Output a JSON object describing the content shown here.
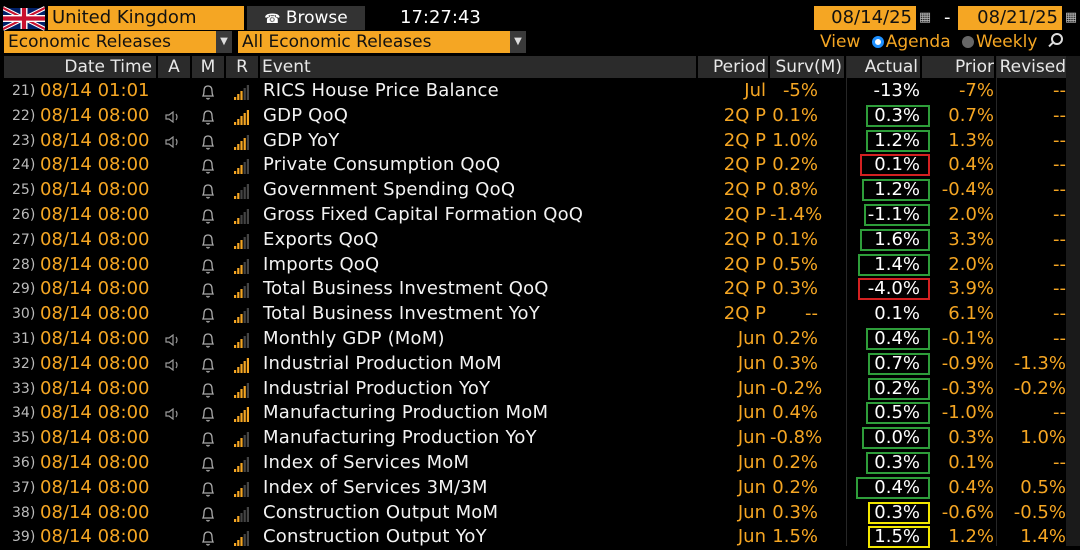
{
  "header": {
    "country": "United Kingdom",
    "browse_label": "Browse",
    "clock": "17:27:43",
    "date_from": "08/14/25",
    "date_to": "08/21/25",
    "date_sep": "-"
  },
  "filters": {
    "category": "Economic Releases",
    "subcategory": "All Economic Releases",
    "view_label": "View",
    "agenda_label": "Agenda",
    "weekly_label": "Weekly"
  },
  "columns": {
    "date_time": "Date Time",
    "a": "A",
    "m": "M",
    "r": "R",
    "event": "Event",
    "period": "Period",
    "surv": "Surv(M)",
    "actual": "Actual",
    "prior": "Prior",
    "revised": "Revised"
  },
  "colors": {
    "accent": "#f5a623",
    "beat": "#2e9d3a",
    "miss": "#d42121",
    "inline": "#f2e600"
  },
  "rows": [
    {
      "num": "21)",
      "dt": "08/14 01:01",
      "sound": false,
      "rel": 3,
      "event": "RICS House Price Balance",
      "period": "Jul",
      "surv": "-5%",
      "actual": "-13%",
      "prior": "-7%",
      "revised": "--",
      "box": "none",
      "bw": 0
    },
    {
      "num": "22)",
      "dt": "08/14 08:00",
      "sound": true,
      "rel": 5,
      "event": "GDP QoQ",
      "period": "2Q P",
      "surv": "0.1%",
      "actual": "0.3%",
      "prior": "0.7%",
      "revised": "--",
      "box": "green",
      "bw": 56
    },
    {
      "num": "23)",
      "dt": "08/14 08:00",
      "sound": true,
      "rel": 4,
      "event": "GDP YoY",
      "period": "2Q P",
      "surv": "1.0%",
      "actual": "1.2%",
      "prior": "1.3%",
      "revised": "--",
      "box": "green",
      "bw": 56
    },
    {
      "num": "24)",
      "dt": "08/14 08:00",
      "sound": false,
      "rel": 3,
      "event": "Private Consumption QoQ",
      "period": "2Q P",
      "surv": "0.2%",
      "actual": "0.1%",
      "prior": "0.4%",
      "revised": "--",
      "box": "red",
      "bw": 62
    },
    {
      "num": "25)",
      "dt": "08/14 08:00",
      "sound": false,
      "rel": 2,
      "event": "Government Spending QoQ",
      "period": "2Q P",
      "surv": "0.8%",
      "actual": "1.2%",
      "prior": "-0.4%",
      "revised": "--",
      "box": "green",
      "bw": 60
    },
    {
      "num": "26)",
      "dt": "08/14 08:00",
      "sound": false,
      "rel": 2,
      "event": "Gross Fixed Capital Formation QoQ",
      "period": "2Q P",
      "surv": "-1.4%",
      "actual": "-1.1%",
      "prior": "2.0%",
      "revised": "--",
      "box": "green",
      "bw": 58
    },
    {
      "num": "27)",
      "dt": "08/14 08:00",
      "sound": false,
      "rel": 3,
      "event": "Exports QoQ",
      "period": "2Q P",
      "surv": "0.1%",
      "actual": "1.6%",
      "prior": "3.3%",
      "revised": "--",
      "box": "green",
      "bw": 62
    },
    {
      "num": "28)",
      "dt": "08/14 08:00",
      "sound": false,
      "rel": 3,
      "event": "Imports QoQ",
      "period": "2Q P",
      "surv": "0.5%",
      "actual": "1.4%",
      "prior": "2.0%",
      "revised": "--",
      "box": "green",
      "bw": 64
    },
    {
      "num": "29)",
      "dt": "08/14 08:00",
      "sound": false,
      "rel": 3,
      "event": "Total Business Investment QoQ",
      "period": "2Q P",
      "surv": "0.3%",
      "actual": "-4.0%",
      "prior": "3.9%",
      "revised": "--",
      "box": "red",
      "bw": 64
    },
    {
      "num": "30)",
      "dt": "08/14 08:00",
      "sound": false,
      "rel": 3,
      "event": "Total Business Investment YoY",
      "period": "2Q P",
      "surv": "--",
      "actual": "0.1%",
      "prior": "6.1%",
      "revised": "--",
      "box": "none",
      "bw": 0
    },
    {
      "num": "31)",
      "dt": "08/14 08:00",
      "sound": true,
      "rel": 3,
      "event": "Monthly GDP (MoM)",
      "period": "Jun",
      "surv": "0.2%",
      "actual": "0.4%",
      "prior": "-0.1%",
      "revised": "--",
      "box": "green",
      "bw": 56
    },
    {
      "num": "32)",
      "dt": "08/14 08:00",
      "sound": true,
      "rel": 5,
      "event": "Industrial Production MoM",
      "period": "Jun",
      "surv": "0.3%",
      "actual": "0.7%",
      "prior": "-0.9%",
      "revised": "-1.3%",
      "box": "green",
      "bw": 54
    },
    {
      "num": "33)",
      "dt": "08/14 08:00",
      "sound": false,
      "rel": 4,
      "event": "Industrial Production YoY",
      "period": "Jun",
      "surv": "-0.2%",
      "actual": "0.2%",
      "prior": "-0.3%",
      "revised": "-0.2%",
      "box": "green",
      "bw": 54
    },
    {
      "num": "34)",
      "dt": "08/14 08:00",
      "sound": true,
      "rel": 5,
      "event": "Manufacturing Production MoM",
      "period": "Jun",
      "surv": "0.4%",
      "actual": "0.5%",
      "prior": "-1.0%",
      "revised": "--",
      "box": "green",
      "bw": 56
    },
    {
      "num": "35)",
      "dt": "08/14 08:00",
      "sound": false,
      "rel": 3,
      "event": "Manufacturing Production YoY",
      "period": "Jun",
      "surv": "-0.8%",
      "actual": "0.0%",
      "prior": "0.3%",
      "revised": "1.0%",
      "box": "green",
      "bw": 60
    },
    {
      "num": "36)",
      "dt": "08/14 08:00",
      "sound": false,
      "rel": 3,
      "event": "Index of Services MoM",
      "period": "Jun",
      "surv": "0.2%",
      "actual": "0.3%",
      "prior": "0.1%",
      "revised": "--",
      "box": "green",
      "bw": 56
    },
    {
      "num": "37)",
      "dt": "08/14 08:00",
      "sound": false,
      "rel": 3,
      "event": "Index of Services 3M/3M",
      "period": "Jun",
      "surv": "0.2%",
      "actual": "0.4%",
      "prior": "0.4%",
      "revised": "0.5%",
      "box": "green",
      "bw": 66
    },
    {
      "num": "38)",
      "dt": "08/14 08:00",
      "sound": false,
      "rel": 2,
      "event": "Construction Output MoM",
      "period": "Jun",
      "surv": "0.3%",
      "actual": "0.3%",
      "prior": "-0.6%",
      "revised": "-0.5%",
      "box": "yellow",
      "bw": 54
    },
    {
      "num": "39)",
      "dt": "08/14 08:00",
      "sound": false,
      "rel": 3,
      "event": "Construction Output YoY",
      "period": "Jun",
      "surv": "1.5%",
      "actual": "1.5%",
      "prior": "1.2%",
      "revised": "1.4%",
      "box": "yellow",
      "bw": 54
    }
  ]
}
